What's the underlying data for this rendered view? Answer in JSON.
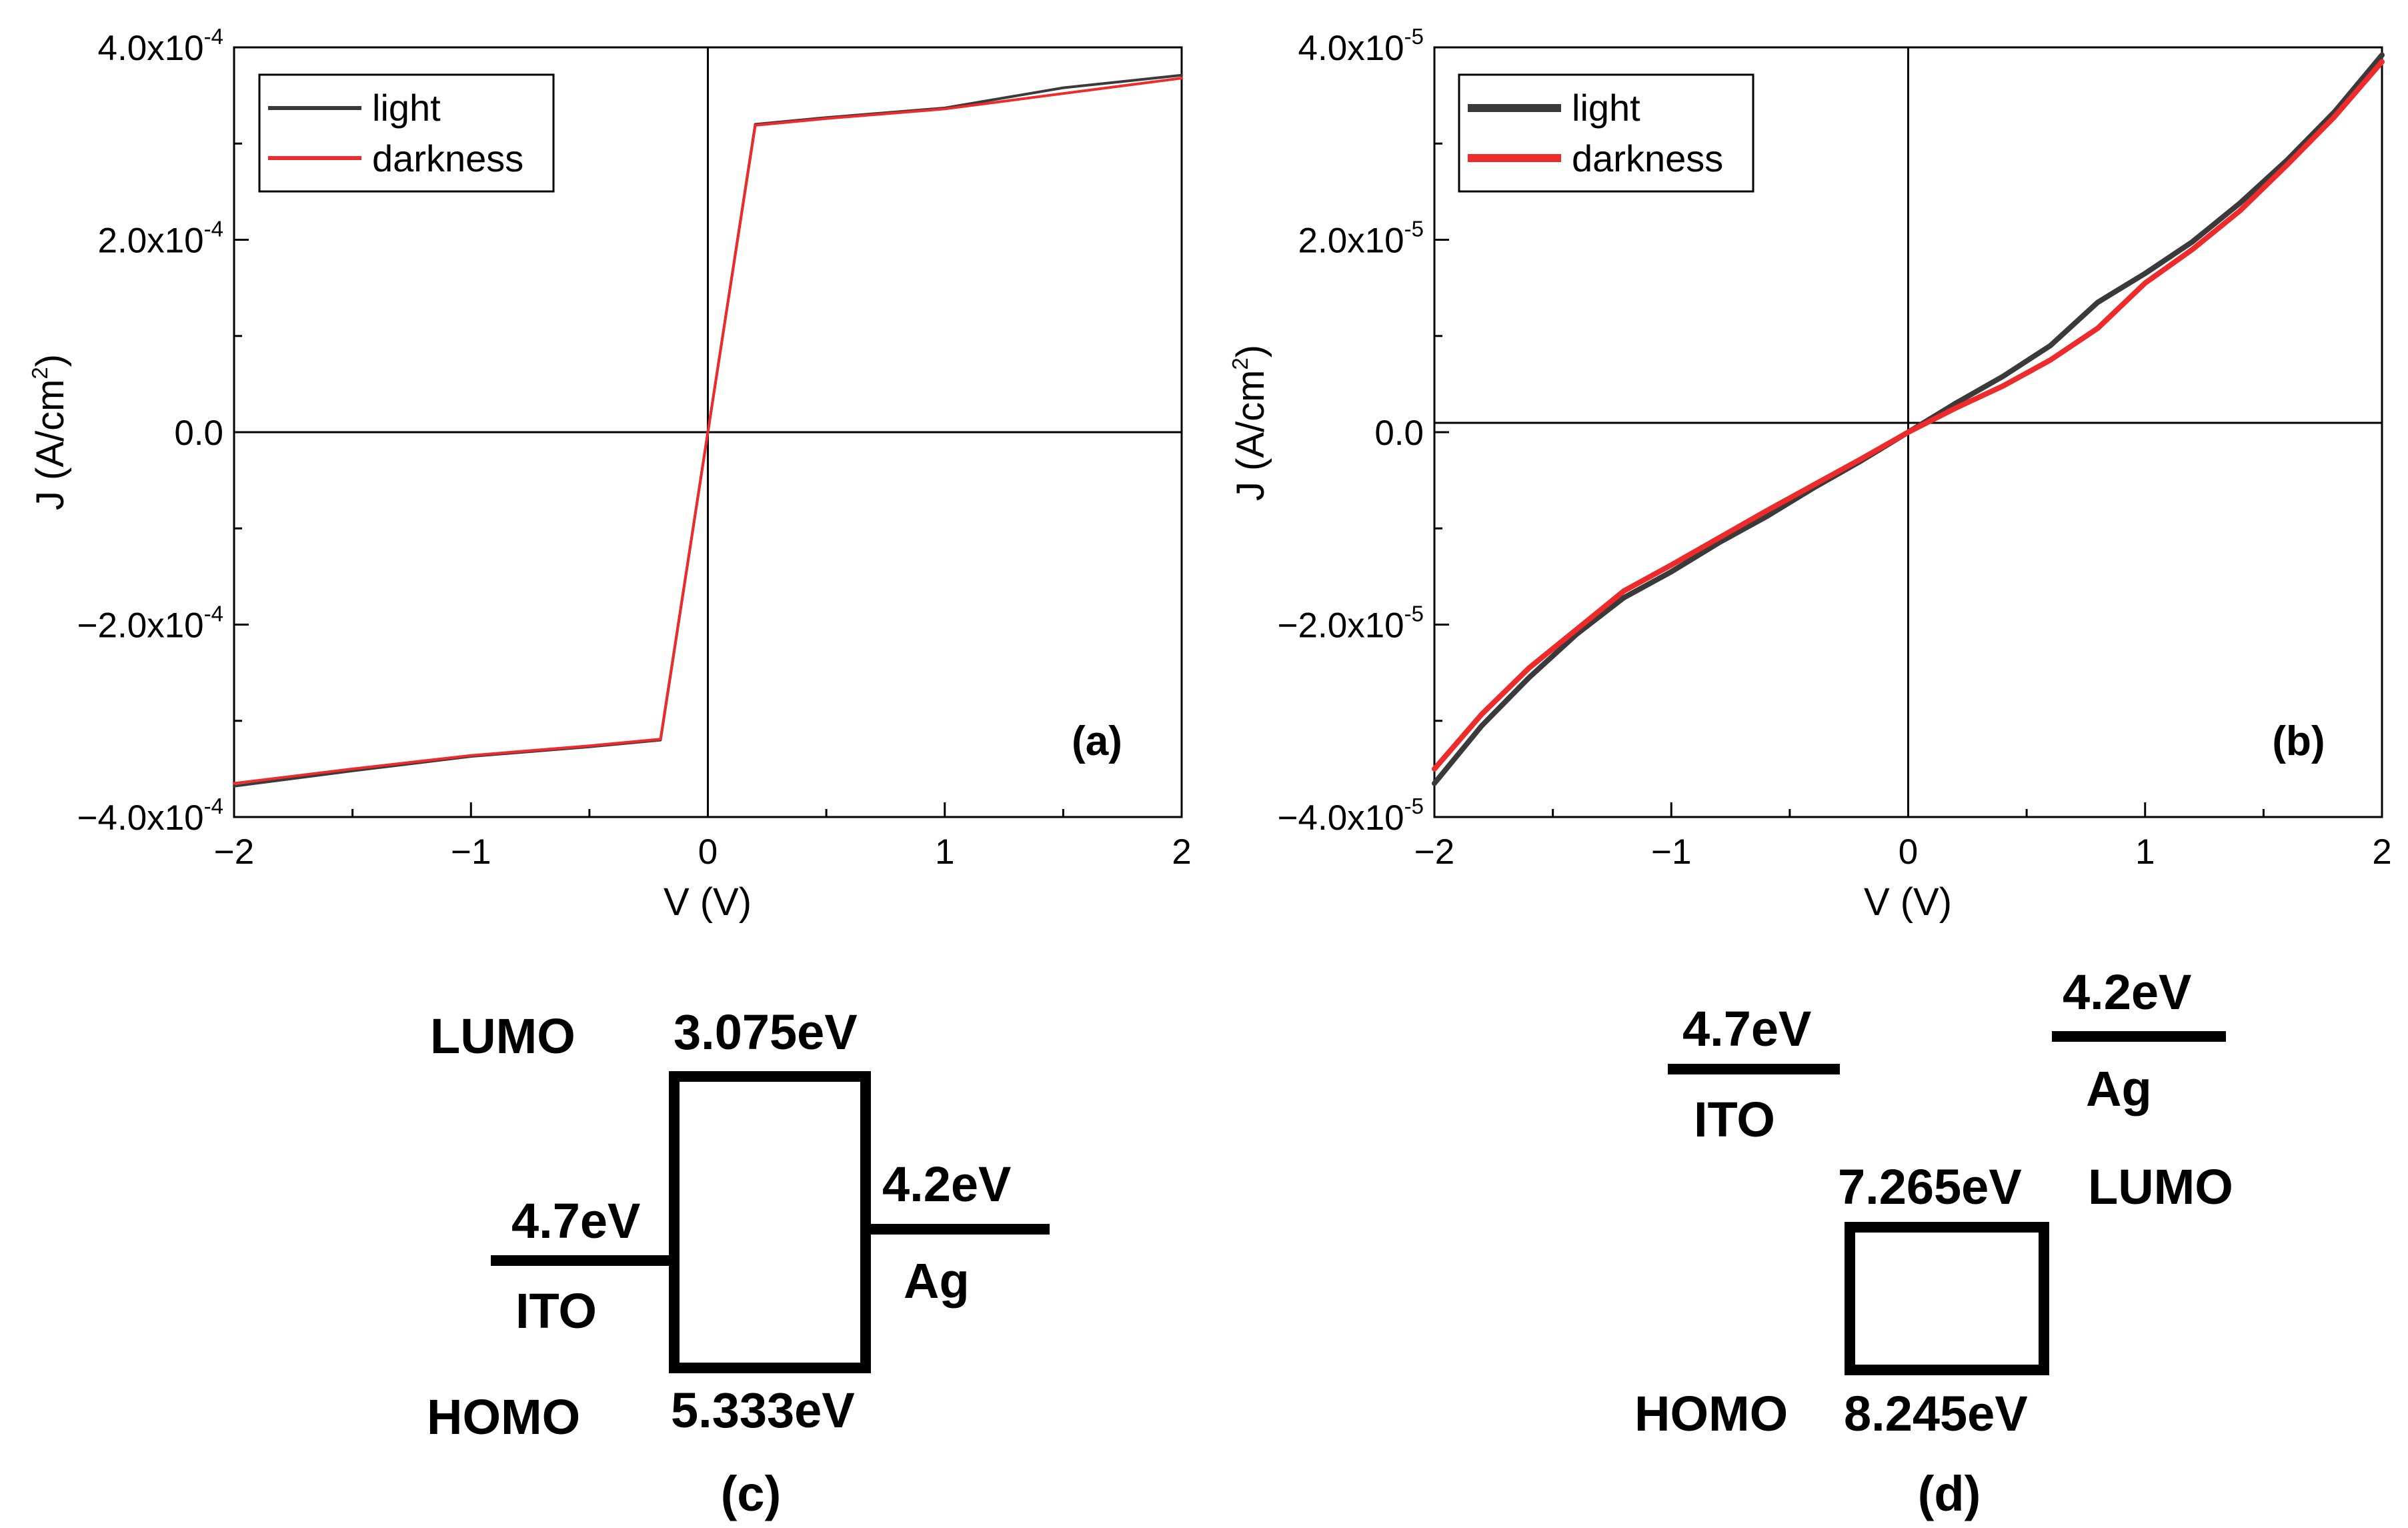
{
  "chart_data": [
    {
      "type": "line",
      "panel": "(a)",
      "xlabel": "V (V)",
      "ylabel": "J (A/cm2)",
      "xlim": [
        -2,
        2
      ],
      "ylim": [
        -0.0004,
        0.0004
      ],
      "x_ticks": [
        -2,
        -1,
        0,
        1,
        2
      ],
      "x_tick_labels": [
        "−2",
        "−1",
        "0",
        "1",
        "2"
      ],
      "y_ticks": [
        {
          "value": 0.0004,
          "mant": "4.0x10",
          "exp": "-4"
        },
        {
          "value": 0.0002,
          "mant": "2.0x10",
          "exp": "-4"
        },
        {
          "value": 0,
          "mant": "0.0",
          "exp": ""
        },
        {
          "value": -0.0002,
          "mant": "−2.0x10",
          "exp": "-4"
        },
        {
          "value": -0.0004,
          "mant": "−4.0x10",
          "exp": "-4"
        }
      ],
      "legend_position": "top-left",
      "series": [
        {
          "name": "light",
          "color": "#3a3a3a",
          "x": [
            -2,
            -1.5,
            -1,
            -0.5,
            -0.2,
            0,
            0.2,
            0.5,
            1,
            1.5,
            2
          ],
          "y": [
            -0.000368,
            -0.000352,
            -0.000337,
            -0.000327,
            -0.00032,
            0,
            0.00032,
            0.000327,
            0.000337,
            0.000358,
            0.000371
          ]
        },
        {
          "name": "darkness",
          "color": "#ee2a2a",
          "x": [
            -2,
            -1.5,
            -1,
            -0.5,
            -0.2,
            0,
            0.2,
            0.5,
            1,
            1.5,
            2
          ],
          "y": [
            -0.000365,
            -0.00035,
            -0.000336,
            -0.000326,
            -0.000319,
            0,
            0.000319,
            0.000326,
            0.000336,
            0.000352,
            0.000368
          ]
        }
      ]
    },
    {
      "type": "line",
      "panel": "(b)",
      "xlabel": "V (V)",
      "ylabel": "J (A/cm2)",
      "xlim": [
        -2,
        2
      ],
      "ylim": [
        -4e-05,
        4e-05
      ],
      "x_ticks": [
        -2,
        -1,
        0,
        1,
        2
      ],
      "x_tick_labels": [
        "−2",
        "−1",
        "0",
        "1",
        "2"
      ],
      "y_ticks": [
        {
          "value": 4e-05,
          "mant": "4.0x10",
          "exp": "-5"
        },
        {
          "value": 2e-05,
          "mant": "2.0x10",
          "exp": "-5"
        },
        {
          "value": 0,
          "mant": "0.0",
          "exp": ""
        },
        {
          "value": -2e-05,
          "mant": "−2.0x10",
          "exp": "-5"
        },
        {
          "value": -4e-05,
          "mant": "−4.0x10",
          "exp": "-5"
        }
      ],
      "legend_position": "top-left",
      "series": [
        {
          "name": "light",
          "color": "#3a3a3a",
          "x": [
            -2,
            -1.8,
            -1.6,
            -1.4,
            -1.2,
            -1,
            -0.8,
            -0.6,
            -0.4,
            -0.2,
            0,
            0.2,
            0.4,
            0.6,
            0.8,
            1,
            1.2,
            1.4,
            1.6,
            1.8,
            2
          ],
          "y": [
            -3.65e-05,
            -3.05e-05,
            -2.55e-05,
            -2.1e-05,
            -1.72e-05,
            -1.45e-05,
            -1.15e-05,
            -8.8e-06,
            -5.8e-06,
            -3e-06,
            0,
            3e-06,
            5.8e-06,
            9e-06,
            1.35e-05,
            1.65e-05,
            1.98e-05,
            2.38e-05,
            2.83e-05,
            3.33e-05,
            3.92e-05
          ]
        },
        {
          "name": "darkness",
          "color": "#ee2a2a",
          "x": [
            -2,
            -1.8,
            -1.6,
            -1.4,
            -1.2,
            -1,
            -0.8,
            -0.6,
            -0.4,
            -0.2,
            0,
            0.2,
            0.4,
            0.6,
            0.8,
            1,
            1.2,
            1.4,
            1.6,
            1.8,
            2
          ],
          "y": [
            -3.5e-05,
            -2.93e-05,
            -2.45e-05,
            -2.05e-05,
            -1.65e-05,
            -1.38e-05,
            -1.1e-05,
            -8.2e-06,
            -5.5e-06,
            -2.8e-06,
            0,
            2.5e-06,
            4.8e-06,
            7.5e-06,
            1.08e-05,
            1.55e-05,
            1.9e-05,
            2.3e-05,
            2.78e-05,
            3.28e-05,
            3.85e-05
          ]
        }
      ]
    }
  ],
  "diagram_c": {
    "panel": "(c)",
    "lumo_label": "LUMO",
    "homo_label": "HOMO",
    "lumo_value": "3.075eV",
    "homo_value": "5.333eV",
    "ito_value": "4.7eV",
    "ito_label": "ITO",
    "ag_value": "4.2eV",
    "ag_label": "Ag"
  },
  "diagram_d": {
    "panel": "(d)",
    "lumo_label": "LUMO",
    "homo_label": "HOMO",
    "lumo_value": "7.265eV",
    "homo_value": "8.245eV",
    "ito_value": "4.7eV",
    "ito_label": "ITO",
    "ag_value": "4.2eV",
    "ag_label": "Ag"
  }
}
